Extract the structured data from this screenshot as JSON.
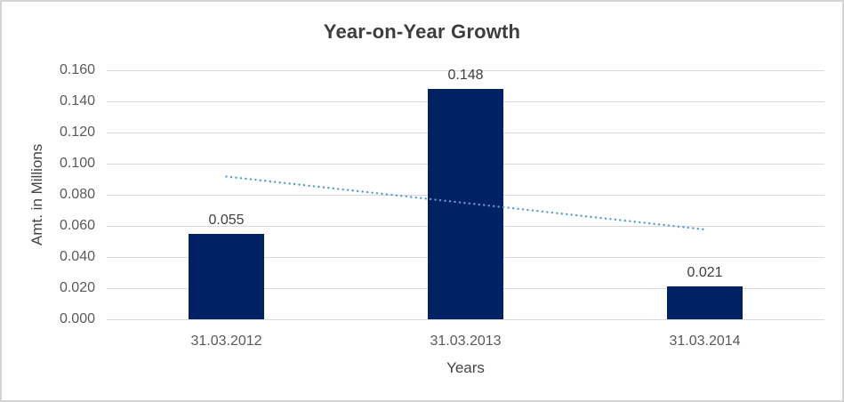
{
  "window": {
    "background_color": "#ffffff",
    "border_color": "#d4d4d4"
  },
  "chart_data": {
    "type": "bar",
    "title": "Year-on-Year Growth",
    "xlabel": "Years",
    "ylabel": "Amt. in Millions",
    "categories": [
      "31.03.2012",
      "31.03.2013",
      "31.03.2014"
    ],
    "values": [
      0.055,
      0.148,
      0.021
    ],
    "data_labels": [
      "0.055",
      "0.148",
      "0.021"
    ],
    "ylim": [
      0,
      0.16
    ],
    "ytick_step": 0.02,
    "ytick_labels": [
      "0.000",
      "0.020",
      "0.040",
      "0.060",
      "0.080",
      "0.100",
      "0.120",
      "0.140",
      "0.160"
    ],
    "grid": true,
    "legend": "none",
    "colors": {
      "bar": "#002163",
      "gridline": "#d9d9d9",
      "axis_text": "#595959",
      "title_text": "#3d3d3d",
      "data_label_text": "#404040",
      "trendline": "#5b9bd5"
    },
    "trendline": {
      "type": "linear",
      "style": "dotted",
      "start_value": 0.0917,
      "end_value": 0.0577
    }
  }
}
